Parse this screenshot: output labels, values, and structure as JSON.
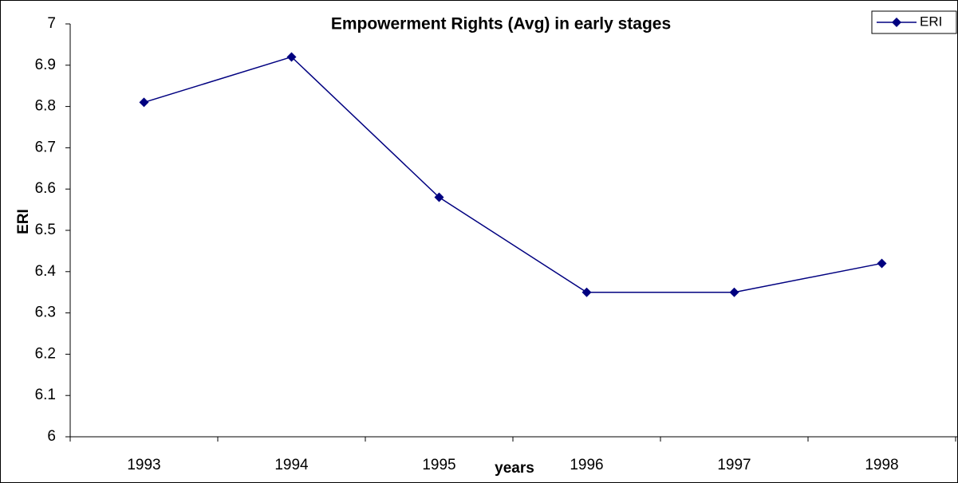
{
  "chart_data": {
    "type": "line",
    "title": "Empowerment Rights (Avg) in early stages",
    "x_label": "years",
    "y_label": "ERI",
    "categories": [
      "1993",
      "1994",
      "1995",
      "1996",
      "1997",
      "1998"
    ],
    "series": [
      {
        "name": "ERI",
        "color": "#000080",
        "values": [
          6.81,
          6.92,
          6.58,
          6.35,
          6.35,
          6.42
        ]
      }
    ],
    "ylim": [
      6,
      7
    ],
    "yticks": [
      6,
      6.1,
      6.2,
      6.3,
      6.4,
      6.5,
      6.6,
      6.7,
      6.8,
      6.9,
      7
    ],
    "grid": false,
    "legend": "top-right"
  }
}
